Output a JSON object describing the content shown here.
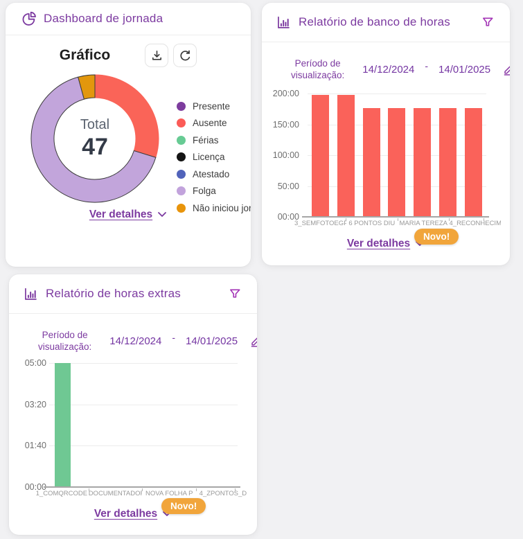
{
  "app": {
    "background_color": "#f1f1f3",
    "accent_purple": "#7c3aa0",
    "badge_orange": "#f1a53b"
  },
  "cards": {
    "jornada": {
      "title": "Dashboard de jornada",
      "chart_title": "Gráfico",
      "ver_detalhes": "Ver detalhes"
    },
    "banco": {
      "title": "Relatório de banco de horas",
      "period_label": "Período de visualização:",
      "date_start": "14/12/2024",
      "date_separator": "-",
      "date_end": "14/01/2025",
      "ver_detalhes": "Ver detalhes",
      "novo_badge": "Novo!"
    },
    "extras": {
      "title": "Relatório de horas extras",
      "period_label": "Período de visualização:",
      "date_start": "14/12/2024",
      "date_separator": "-",
      "date_end": "14/01/2025",
      "ver_detalhes": "Ver detalhes",
      "novo_badge": "Novo!"
    }
  },
  "chart_data": [
    {
      "type": "pie",
      "subtype": "donut",
      "title": "Gráfico",
      "center_label": "Total",
      "center_value": "47",
      "total": 47,
      "segments": [
        {
          "label": "Ausente",
          "value": 14,
          "color": "#fa6458",
          "outline": "#fa6458"
        },
        {
          "label": "Folga",
          "value": 31,
          "color": "#c2a5db",
          "outline": "#3a3a3a"
        },
        {
          "label": "Não iniciou jornada",
          "value": 2,
          "color": "#e2970d",
          "outline": "#3a3a3a"
        }
      ],
      "legend_position": "right",
      "legend": [
        {
          "label": "Presente",
          "color": "#7d3c9e"
        },
        {
          "label": "Ausente",
          "color": "#fb5b57"
        },
        {
          "label": "Férias",
          "color": "#67cb94"
        },
        {
          "label": "Licença",
          "color": "#141414"
        },
        {
          "label": "Atestado",
          "color": "#5163ba"
        },
        {
          "label": "Folga",
          "color": "#c2a3dc"
        },
        {
          "label": "Não iniciou jornada",
          "color": "#e8940b"
        }
      ]
    },
    {
      "type": "bar",
      "title": "Relatório de banco de horas",
      "unit": "hours (HH:MM)",
      "values": [
        198,
        198,
        176,
        176,
        176,
        176,
        176
      ],
      "bar_color": "#fa625a",
      "ylim": [
        0,
        200
      ],
      "yticks_top_to_bottom": [
        "200:00",
        "150:00",
        "100:00",
        "50:00",
        "00:00"
      ],
      "x_labels_visible": [
        "3_SEMFOTOEGP",
        "6 PONTOS DIU",
        "MARIA TEREZA",
        "4_RECONHECIM"
      ],
      "grid": true
    },
    {
      "type": "bar",
      "title": "Relatório de horas extras",
      "unit": "hours (HH:MM)",
      "values": [
        5,
        0,
        0,
        0,
        0,
        0,
        0
      ],
      "bar_color": "#6fc893",
      "ylim": [
        0,
        5
      ],
      "yticks_top_to_bottom": [
        "05:00",
        "03:20",
        "01:40",
        "00:00"
      ],
      "x_labels_visible": [
        "1_COMQRCODE",
        "DOCUMENTADOR",
        "NOVA FOLHA P",
        "4_ZPONTOS_D"
      ],
      "grid": true
    }
  ]
}
